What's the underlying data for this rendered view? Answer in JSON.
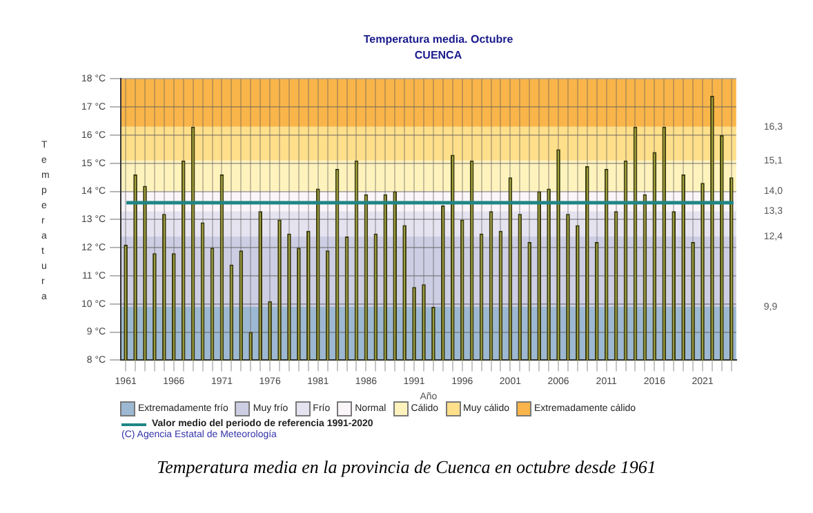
{
  "chart_data": {
    "type": "bar",
    "title": "Temperatura media. Octubre",
    "subtitle": "CUENCA",
    "xlabel": "Año",
    "ylabel": "Temperatura",
    "categories": [
      "1961",
      null,
      null,
      null,
      null,
      "1966",
      null,
      null,
      null,
      null,
      "1971",
      null,
      null,
      null,
      null,
      "1976",
      null,
      null,
      null,
      null,
      "1981",
      null,
      null,
      null,
      null,
      "1986",
      null,
      null,
      null,
      null,
      "1991",
      null,
      null,
      null,
      null,
      "1996",
      null,
      null,
      null,
      null,
      "2001",
      null,
      null,
      null,
      null,
      "2006",
      null,
      null,
      null,
      null,
      "2011",
      null,
      null,
      null,
      null,
      "2016",
      null,
      null,
      null,
      null,
      "2021",
      null,
      null,
      null
    ],
    "series": [
      {
        "color": "#a3a332",
        "values": [
          12.1,
          14.6,
          14.2,
          11.8,
          13.2,
          11.8,
          15.1,
          16.3,
          12.9,
          12.0,
          14.6,
          11.4,
          11.9,
          9.0,
          13.3,
          10.1,
          13.0,
          12.5,
          12.0,
          12.6,
          14.1,
          11.9,
          14.8,
          12.4,
          15.1,
          13.9,
          12.5,
          13.9,
          14.0,
          12.8,
          10.6,
          10.7,
          9.9,
          13.5,
          15.3,
          13.0,
          15.1,
          12.5,
          13.3,
          12.6,
          14.5,
          13.2,
          12.2,
          14.0,
          14.1,
          15.5,
          13.2,
          12.8,
          14.9,
          12.2,
          14.8,
          13.3,
          15.1,
          16.3,
          13.9,
          15.4,
          16.3,
          13.3,
          14.6,
          12.2,
          14.3,
          17.4,
          16.0,
          14.5
        ]
      }
    ],
    "ylim": [
      8,
      18
    ],
    "yticks": [
      {
        "value": 8,
        "label": "8 °C"
      },
      {
        "value": 9,
        "label": "9 °C"
      },
      {
        "value": 10,
        "label": "10 °C"
      },
      {
        "value": 11,
        "label": "11 °C"
      },
      {
        "value": 12,
        "label": "12 °C"
      },
      {
        "value": 13,
        "label": "13 °C"
      },
      {
        "value": 14,
        "label": "14 °C"
      },
      {
        "value": 15,
        "label": "15 °C"
      },
      {
        "value": 16,
        "label": "16 °C"
      },
      {
        "value": 17,
        "label": "17 °C"
      },
      {
        "value": 18,
        "label": "18 °C"
      }
    ],
    "y2lim": [
      8,
      18
    ],
    "y2ticks": [
      {
        "value": 9.9,
        "label": "9,9"
      },
      {
        "value": 12.4,
        "label": "12,4"
      },
      {
        "value": 13.3,
        "label": "13,3"
      },
      {
        "value": 14.0,
        "label": "14,0"
      },
      {
        "value": 15.1,
        "label": "15,1"
      },
      {
        "value": 16.3,
        "label": "16,3"
      }
    ],
    "bands": [
      {
        "axis": "y",
        "from": 8,
        "to": 9.9,
        "label": "Extremadamente frío",
        "color": "#9db8d2"
      },
      {
        "axis": "y",
        "from": 9.9,
        "to": 12.4,
        "label": "Muy frío",
        "color": "#cdcde3"
      },
      {
        "axis": "y",
        "from": 12.4,
        "to": 13.3,
        "label": "Frío",
        "color": "#e6e3f0"
      },
      {
        "axis": "y",
        "from": 13.3,
        "to": 14.0,
        "label": "Normal",
        "color": "#faf5f8"
      },
      {
        "axis": "y",
        "from": 14.0,
        "to": 15.1,
        "label": "Cálido",
        "color": "#fff3bd"
      },
      {
        "axis": "y",
        "from": 15.1,
        "to": 16.3,
        "label": "Muy cálido",
        "color": "#ffdf8a"
      },
      {
        "axis": "y",
        "from": 16.3,
        "to": 18,
        "label": "Extremadamente cálido",
        "color": "#f9b54a"
      }
    ],
    "ref_lines": [
      {
        "axis": "y",
        "value": 13.6,
        "label": "Valor medio del periodo de referencia 1991-2020",
        "color": "#1f8585"
      }
    ],
    "annotations": [
      "(C) Agencia Estatal de Meteorología",
      "Temperatura media en la provincia de Cuenca en octubre desde 1961"
    ],
    "grid": true,
    "legend": "bottom"
  }
}
